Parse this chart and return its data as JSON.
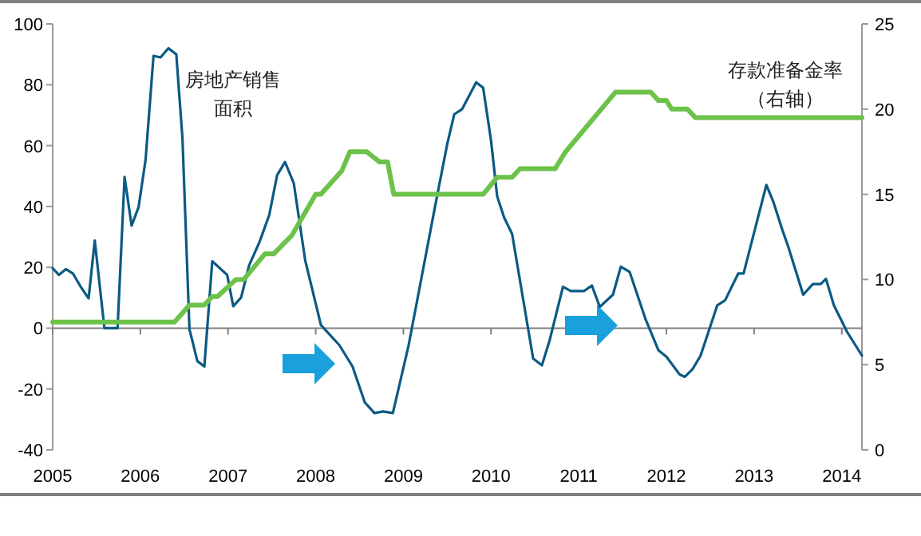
{
  "chart_data": {
    "type": "line",
    "xlim": [
      2005,
      2014.23
    ],
    "xticks": [
      {
        "value": 2005,
        "label": "2005"
      },
      {
        "value": 2006,
        "label": "2006"
      },
      {
        "value": 2007,
        "label": "2007"
      },
      {
        "value": 2008,
        "label": "2008"
      },
      {
        "value": 2009,
        "label": "2009"
      },
      {
        "value": 2010,
        "label": "2010"
      },
      {
        "value": 2011,
        "label": "2011"
      },
      {
        "value": 2012,
        "label": "2012"
      },
      {
        "value": 2013,
        "label": "2013"
      },
      {
        "value": 2014,
        "label": "2014"
      }
    ],
    "ylim": [
      -40,
      100
    ],
    "yticks": [
      -40,
      -20,
      0,
      20,
      40,
      60,
      80,
      100
    ],
    "y2lim": [
      0,
      25
    ],
    "y2ticks": [
      0,
      5,
      10,
      15,
      20,
      25
    ],
    "grid": false,
    "ref_lines": [
      {
        "axis": "y",
        "value": 0,
        "color": "#808080"
      }
    ],
    "annotations": [
      "房地产销售",
      "面积",
      "存款准备金率",
      "（右轴）"
    ],
    "series": [
      {
        "color": "#0b5a84",
        "x": [
          2005.0,
          2005.07,
          2005.15,
          2005.23,
          2005.32,
          2005.41,
          2005.48,
          2005.59,
          2005.74,
          2005.82,
          2005.9,
          2005.98,
          2006.06,
          2006.15,
          2006.23,
          2006.32,
          2006.41,
          2006.48,
          2006.56,
          2006.65,
          2006.73,
          2006.82,
          2006.99,
          2007.06,
          2007.15,
          2007.24,
          2007.36,
          2007.47,
          2007.56,
          2007.65,
          2007.75,
          2007.88,
          2008.06,
          2008.27,
          2008.42,
          2008.56,
          2008.67,
          2008.77,
          2008.88,
          2009.06,
          2009.21,
          2009.36,
          2009.5,
          2009.58,
          2009.67,
          2009.83,
          2009.91,
          2010.0,
          2010.07,
          2010.15,
          2010.24,
          2010.48,
          2010.58,
          2010.67,
          2010.82,
          2010.91,
          2011.06,
          2011.15,
          2011.24,
          2011.39,
          2011.48,
          2011.58,
          2011.76,
          2011.91,
          2012.0,
          2012.15,
          2012.21,
          2012.3,
          2012.39,
          2012.58,
          2012.67,
          2012.82,
          2012.88,
          2013.14,
          2013.22,
          2013.32,
          2013.39,
          2013.56,
          2013.67,
          2013.76,
          2013.82,
          2013.91,
          2014.06,
          2014.23
        ],
        "values": [
          19.7,
          17.5,
          19.4,
          18,
          13.6,
          9.8,
          28.8,
          0,
          0,
          49.7,
          33.7,
          39.8,
          55.5,
          89.5,
          89,
          92,
          90,
          62.5,
          -0.3,
          -10.8,
          -12.6,
          22,
          17.5,
          7.2,
          10.1,
          20.6,
          28.4,
          37.2,
          50.3,
          54.6,
          47.6,
          22.3,
          1,
          -5.6,
          -12.6,
          -24.4,
          -27.9,
          -27.4,
          -27.9,
          -5.6,
          17.1,
          39.8,
          60.5,
          70.3,
          72,
          80.8,
          79,
          61.6,
          43.3,
          36.3,
          31,
          -10,
          -12.2,
          -3.8,
          13.6,
          12.2,
          12.2,
          14,
          7,
          11,
          20.2,
          18.5,
          3.1,
          -7.3,
          -9.4,
          -15.2,
          -16,
          -13.4,
          -9,
          7.5,
          9.2,
          18,
          18,
          47.1,
          41.5,
          32.5,
          26.7,
          11,
          14.5,
          14.5,
          16.2,
          7.5,
          -1.2,
          -9
        ]
      },
      {
        "color": "#6cc24a",
        "axis": "y2",
        "x": [
          2005.0,
          2006.39,
          2006.56,
          2006.73,
          2006.82,
          2006.88,
          2007.09,
          2007.18,
          2007.42,
          2007.52,
          2007.73,
          2008.0,
          2008.06,
          2008.3,
          2008.39,
          2008.58,
          2008.73,
          2008.82,
          2008.89,
          2009.91,
          2010.07,
          2010.24,
          2010.33,
          2010.73,
          2010.85,
          2011.42,
          2011.82,
          2011.91,
          2012.0,
          2012.06,
          2012.24,
          2012.33,
          2014.23
        ],
        "values": [
          7.5,
          7.5,
          8.5,
          8.5,
          9,
          9,
          10,
          10,
          11.5,
          11.5,
          12.6,
          15,
          15,
          16.4,
          17.5,
          17.5,
          16.9,
          16.9,
          15,
          15,
          16,
          16,
          16.5,
          16.5,
          17.5,
          21,
          21,
          20.5,
          20.5,
          20,
          20,
          19.5,
          19.5
        ]
      }
    ]
  }
}
